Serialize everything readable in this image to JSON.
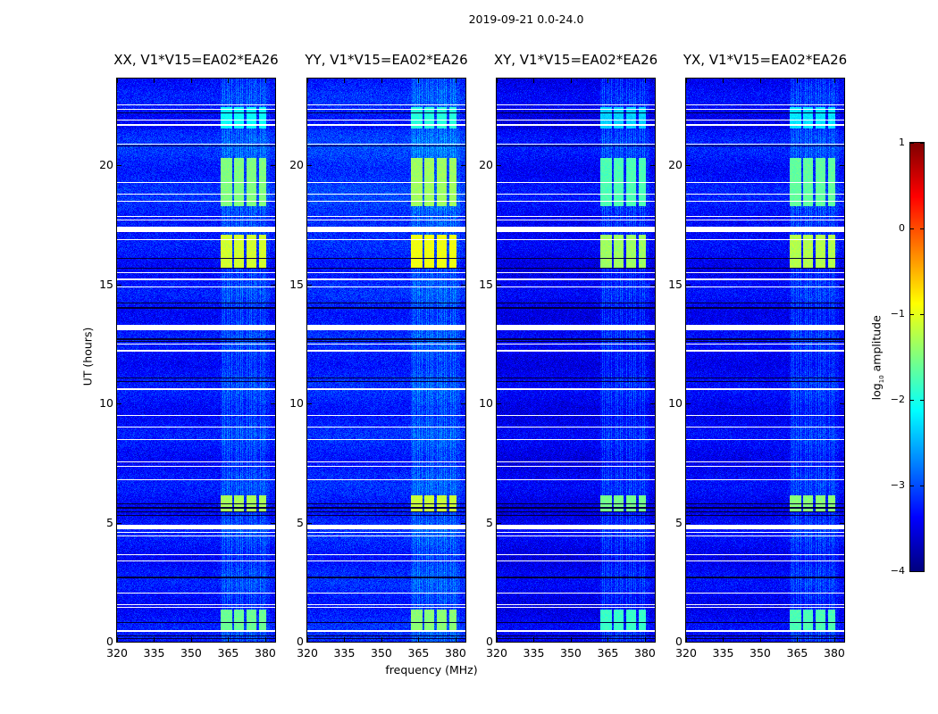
{
  "chart_data": {
    "type": "heatmap",
    "title": "2019-09-21 0.0-24.0",
    "xlabel": "frequency (MHz)",
    "ylabel": "UT (hours)",
    "xlim": [
      320,
      384
    ],
    "ylim": [
      0,
      23.65
    ],
    "xticks": [
      "320",
      "335",
      "350",
      "365",
      "380"
    ],
    "xtick_values": [
      320,
      335,
      350,
      365,
      380
    ],
    "yticks": [
      "0",
      "5",
      "10",
      "15",
      "20"
    ],
    "ytick_values": [
      0,
      5,
      10,
      15,
      20
    ],
    "panels": [
      {
        "title": "XX, V1*V15=EA02*EA26",
        "gain": 0.0
      },
      {
        "title": "YY, V1*V15=EA02*EA26",
        "gain": 0.15
      },
      {
        "title": "XY, V1*V15=EA02*EA26",
        "gain": -0.25
      },
      {
        "title": "YX, V1*V15=EA02*EA26",
        "gain": -0.15
      }
    ],
    "colorbar": {
      "label_main": "log",
      "label_sub": "10",
      "label_rest": " amplitude",
      "colormap": "jet",
      "vmin": -4,
      "vmax": 1,
      "ticks": [
        "1",
        "0",
        "−1",
        "−2",
        "−3",
        "−4"
      ],
      "tick_values": [
        1,
        0,
        -1,
        -2,
        -3,
        -4
      ]
    },
    "background_level": -3.3,
    "rfi_band_mhz": [
      362,
      382
    ],
    "rfi_channels_mhz": [
      [
        362,
        366.5
      ],
      [
        367.5,
        371.5
      ],
      [
        372.5,
        376.5
      ],
      [
        377.5,
        380.5
      ]
    ],
    "bright_intervals_hours": [
      {
        "t": [
          0.45,
          1.35
        ],
        "level": -1.6
      },
      {
        "t": [
          5.45,
          6.15
        ],
        "level": -1.3
      },
      {
        "t": [
          15.7,
          17.1
        ],
        "level": -1.1
      },
      {
        "t": [
          18.3,
          20.3
        ],
        "level": -1.5
      },
      {
        "t": [
          21.55,
          22.45
        ],
        "level": -2.1
      }
    ],
    "flagged_intervals_hours": [
      [
        0.43,
        0.47
      ],
      [
        1.42,
        1.48
      ],
      [
        1.53,
        1.58
      ],
      [
        2.03,
        2.07
      ],
      [
        3.38,
        3.42
      ],
      [
        3.63,
        3.67
      ],
      [
        4.43,
        4.47
      ],
      [
        4.58,
        4.62
      ],
      [
        4.72,
        4.92
      ],
      [
        6.78,
        6.82
      ],
      [
        7.33,
        7.4
      ],
      [
        7.53,
        7.58
      ],
      [
        8.48,
        8.52
      ],
      [
        8.98,
        9.02
      ],
      [
        9.48,
        9.52
      ],
      [
        10.58,
        10.64
      ],
      [
        12.18,
        12.26
      ],
      [
        12.48,
        12.52
      ],
      [
        13.08,
        13.3
      ],
      [
        14.88,
        14.92
      ],
      [
        15.18,
        15.24
      ],
      [
        15.48,
        15.52
      ],
      [
        16.88,
        16.92
      ],
      [
        17.2,
        17.42
      ],
      [
        17.68,
        17.72
      ],
      [
        17.83,
        17.87
      ],
      [
        18.48,
        18.52
      ],
      [
        18.78,
        18.82
      ],
      [
        19.28,
        19.32
      ],
      [
        20.88,
        20.92
      ],
      [
        21.68,
        21.74
      ],
      [
        21.88,
        21.92
      ],
      [
        22.33,
        22.37
      ],
      [
        22.53,
        22.57
      ]
    ],
    "gap_lines_hours": [
      0.13,
      0.25,
      0.8,
      2.7,
      5.3,
      5.45,
      5.62,
      5.8,
      10.93,
      11.08,
      12.7,
      12.6,
      14.02,
      14.22,
      15.68,
      16.1,
      20.83,
      22.2
    ]
  }
}
